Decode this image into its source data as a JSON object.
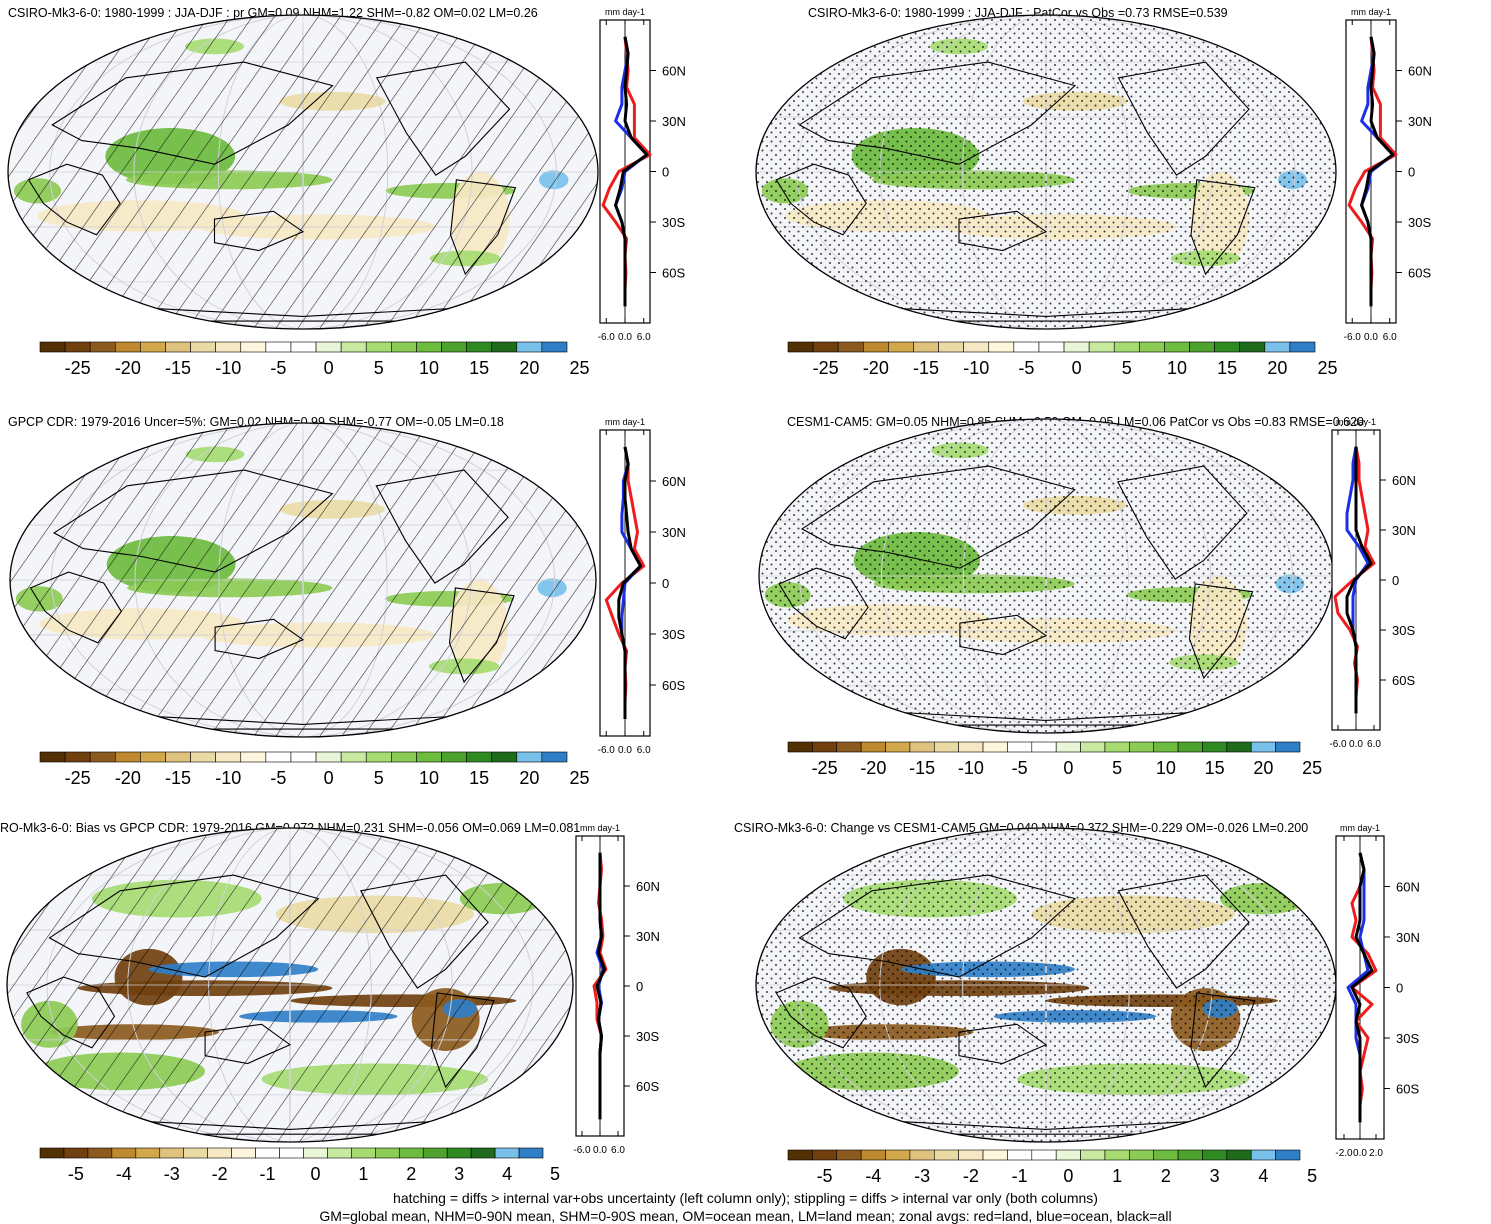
{
  "footer": {
    "line1": "hatching = diffs > internal var+obs uncertainty (left column only); stippling = diffs > internal var only (both columns)",
    "line2": "GM=global mean, NHM=0-90N mean, SHM=0-90S mean, OM=ocean mean, LM=land mean; zonal avgs: red=land, blue=ocean, black=all"
  },
  "colors": {
    "land": "#ee1c1c",
    "ocean": "#1c2fe6",
    "all": "#000000",
    "scale": [
      "#543005",
      "#70400e",
      "#8c5a1e",
      "#bf8a2f",
      "#d2a84c",
      "#dfc27d",
      "#eadba5",
      "#f6e8c3",
      "#fff5dc",
      "#ffffff",
      "#ffffff",
      "#eaf6d8",
      "#c7e9a0",
      "#a6db72",
      "#8ccb55",
      "#6dbb3f",
      "#4ea32e",
      "#2f8a22",
      "#1e6b1c",
      "#78c0ea",
      "#2f7fc8"
    ]
  },
  "chart_data": [
    {
      "type": "heatmap",
      "title": "CSIRO-Mk3-6-0: 1980-1999 : JJA-DJF : pr GM=0.09 NHM=1.22 SHM=-0.82 OM=0.02 LM=0.26",
      "colorbar_ticks": [
        "-25",
        "-20",
        "-15",
        "-10",
        "-5",
        "0",
        "5",
        "10",
        "15",
        "20",
        "25"
      ],
      "overlay": "hatching",
      "zonal": {
        "unit": "mm day-1",
        "xlim": [
          -8,
          8
        ],
        "xticks": [
          "-6.0",
          "0.0",
          "6.0"
        ],
        "yticks": [
          "60N",
          "30N",
          "0",
          "30S",
          "60S"
        ],
        "lat": [
          80,
          70,
          60,
          50,
          40,
          30,
          20,
          10,
          0,
          -10,
          -20,
          -30,
          -40,
          -50,
          -60,
          -70,
          -80
        ],
        "land": [
          0,
          0.5,
          1,
          0.5,
          3,
          3,
          3,
          8,
          -2,
          -5,
          -7,
          -3,
          0.5,
          0,
          0.3,
          0,
          0
        ],
        "ocean": [
          0,
          1,
          0,
          -1,
          -1,
          -3,
          2,
          7,
          0,
          -1,
          -3,
          -1,
          0,
          0,
          0,
          0,
          0
        ],
        "all": [
          0,
          1,
          0.5,
          0,
          0.5,
          0,
          2,
          7,
          -0.5,
          -1.5,
          -3,
          -1,
          0,
          0,
          0,
          0,
          0
        ]
      }
    },
    {
      "type": "heatmap",
      "title": "CSIRO-Mk3-6-0: 1980-1999 : JJA-DJF : PatCor vs Obs =0.73 RMSE=0.539",
      "colorbar_ticks": [
        "-25",
        "-20",
        "-15",
        "-10",
        "-5",
        "0",
        "5",
        "10",
        "15",
        "20",
        "25"
      ],
      "overlay": "stippling",
      "zonal": {
        "unit": "mm day-1",
        "xlim": [
          -8,
          8
        ],
        "xticks": [
          "-6.0",
          "0.0",
          "6.0"
        ],
        "yticks": [
          "60N",
          "30N",
          "0",
          "30S",
          "60S"
        ],
        "lat": [
          80,
          70,
          60,
          50,
          40,
          30,
          20,
          10,
          0,
          -10,
          -20,
          -30,
          -40,
          -50,
          -60,
          -70,
          -80
        ],
        "land": [
          0,
          0.5,
          1,
          0.5,
          3,
          3,
          3,
          8,
          -2,
          -5,
          -7,
          -3,
          0.5,
          0,
          0.3,
          0,
          0
        ],
        "ocean": [
          0,
          1,
          0,
          -1,
          -1,
          -3,
          2,
          7,
          0,
          -1,
          -3,
          -1,
          0,
          0,
          0,
          0,
          0
        ],
        "all": [
          0,
          1,
          0.5,
          0,
          0.5,
          0,
          2,
          7,
          -0.5,
          -1.5,
          -3,
          -1,
          0,
          0,
          0,
          0,
          0
        ]
      }
    },
    {
      "type": "heatmap",
      "title": "GPCP CDR: 1979-2016 Uncer=5%: GM=0.02 NHM=0.99 SHM=-0.77 OM=-0.05 LM=0.18",
      "colorbar_ticks": [
        "-25",
        "-20",
        "-15",
        "-10",
        "-5",
        "0",
        "5",
        "10",
        "15",
        "20",
        "25"
      ],
      "overlay": "hatching",
      "zonal": {
        "unit": "mm day-1",
        "xlim": [
          -8,
          8
        ],
        "xticks": [
          "-6.0",
          "0.0",
          "6.0"
        ],
        "yticks": [
          "60N",
          "30N",
          "0",
          "30S",
          "60S"
        ],
        "lat": [
          80,
          70,
          60,
          50,
          40,
          30,
          20,
          10,
          0,
          -10,
          -20,
          -30,
          -40,
          -50,
          -60,
          -70,
          -80
        ],
        "land": [
          0,
          1,
          1,
          2,
          3,
          4,
          3,
          6,
          -1,
          -6,
          -4,
          -2,
          0.5,
          0,
          0.3,
          0,
          0
        ],
        "ocean": [
          0,
          1,
          -0.5,
          -0.5,
          -1,
          -1,
          2,
          5,
          0,
          -0.5,
          -1,
          -1,
          0,
          0,
          0,
          0,
          0
        ],
        "all": [
          0,
          1,
          0,
          0,
          0.5,
          1,
          2,
          5,
          -0.5,
          -2,
          -2,
          -1,
          0,
          0,
          0,
          0,
          0
        ]
      }
    },
    {
      "type": "heatmap",
      "title": "CESM1-CAM5: GM=0.05 NHM=0.85 SHM=-0.59 OM=0.05 LM=0.06 PatCor vs Obs =0.83 RMSE=0.620",
      "colorbar_ticks": [
        "-25",
        "-20",
        "-15",
        "-10",
        "-5",
        "0",
        "5",
        "10",
        "15",
        "20",
        "25"
      ],
      "overlay": "stippling",
      "zonal": {
        "unit": "mm day-1",
        "xlim": [
          -8,
          8
        ],
        "xticks": [
          "-6.0",
          "0.0",
          "6.0"
        ],
        "yticks": [
          "60N",
          "30N",
          "0",
          "30S",
          "60S"
        ],
        "lat": [
          80,
          70,
          60,
          50,
          40,
          30,
          20,
          10,
          0,
          -10,
          -20,
          -30,
          -40,
          -50,
          -60,
          -70,
          -80
        ],
        "land": [
          0,
          1,
          1,
          2,
          3,
          4,
          3,
          6,
          -1,
          -7,
          -6,
          -2,
          0.5,
          -0.5,
          0.5,
          0,
          0
        ],
        "ocean": [
          0,
          -1,
          -1,
          -2,
          -3,
          -3,
          1,
          4,
          0,
          -1,
          -1,
          -1,
          0,
          0,
          0,
          0,
          0
        ],
        "all": [
          0,
          0,
          0,
          0,
          0,
          0,
          2,
          5,
          -0.5,
          -3,
          -3,
          -1,
          0,
          0,
          0,
          0,
          0
        ]
      }
    },
    {
      "type": "heatmap",
      "title": "RO-Mk3-6-0: Bias vs GPCP CDR: 1979-2016 GM=0.072 NHM=0.231 SHM=-0.056 OM=0.069 LM=0.081",
      "colorbar_ticks": [
        "-5",
        "-4",
        "-3",
        "-2",
        "-1",
        "0",
        "1",
        "2",
        "3",
        "4",
        "5"
      ],
      "overlay": "hatching",
      "zonal": {
        "unit": "mm day-1",
        "xlim": [
          -8,
          8
        ],
        "xticks": [
          "-6.0",
          "0.0",
          "6.0"
        ],
        "yticks": [
          "60N",
          "30N",
          "0",
          "30S",
          "60S"
        ],
        "lat": [
          80,
          70,
          60,
          50,
          40,
          30,
          20,
          10,
          0,
          -10,
          -20,
          -30,
          -40,
          -50,
          -60,
          -70,
          -80
        ],
        "land": [
          0,
          0.5,
          0,
          -0.5,
          0.5,
          1,
          0,
          2,
          -2,
          -1,
          -1,
          0.5,
          0,
          0,
          0,
          0,
          0
        ],
        "ocean": [
          0,
          0,
          0,
          0,
          0,
          0.5,
          -1,
          1,
          -0.5,
          0.5,
          -0.5,
          0.5,
          0,
          0,
          0,
          0,
          0
        ],
        "all": [
          0,
          0,
          0,
          0,
          0,
          0.5,
          -0.5,
          1.5,
          -1,
          0.3,
          -0.5,
          0.5,
          0,
          0,
          0,
          0,
          0
        ]
      }
    },
    {
      "type": "heatmap",
      "title": "CSIRO-Mk3-6-0: Change vs CESM1-CAM5 GM=0.040 NHM=0.372 SHM=-0.229 OM=-0.026 LM=0.200",
      "colorbar_ticks": [
        "-5",
        "-4",
        "-3",
        "-2",
        "-1",
        "0",
        "1",
        "2",
        "3",
        "4",
        "5"
      ],
      "overlay": "stippling",
      "zonal": {
        "unit": "mm day-1",
        "xlim": [
          -3,
          3
        ],
        "xticks": [
          "-2.0",
          "0.0",
          "2.0"
        ],
        "yticks": [
          "60N",
          "30N",
          "0",
          "30S",
          "60S"
        ],
        "lat": [
          80,
          70,
          60,
          50,
          40,
          30,
          20,
          10,
          0,
          -10,
          -20,
          -30,
          -40,
          -50,
          -60,
          -70,
          -80
        ],
        "land": [
          0,
          0.5,
          0,
          -1,
          -0.5,
          -1,
          1,
          2,
          -1,
          1.5,
          -0.5,
          1,
          0.5,
          0,
          0.3,
          0,
          0
        ],
        "ocean": [
          0,
          0.5,
          0.5,
          0.5,
          0.5,
          0,
          0.5,
          1,
          -1.5,
          -0.5,
          -0.5,
          -0.5,
          0,
          0,
          0,
          0,
          0
        ],
        "all": [
          0,
          0.5,
          0,
          0,
          0,
          -0.5,
          0.5,
          1.5,
          -1,
          0,
          -0.5,
          0,
          0,
          0,
          0,
          0,
          0
        ]
      }
    }
  ]
}
